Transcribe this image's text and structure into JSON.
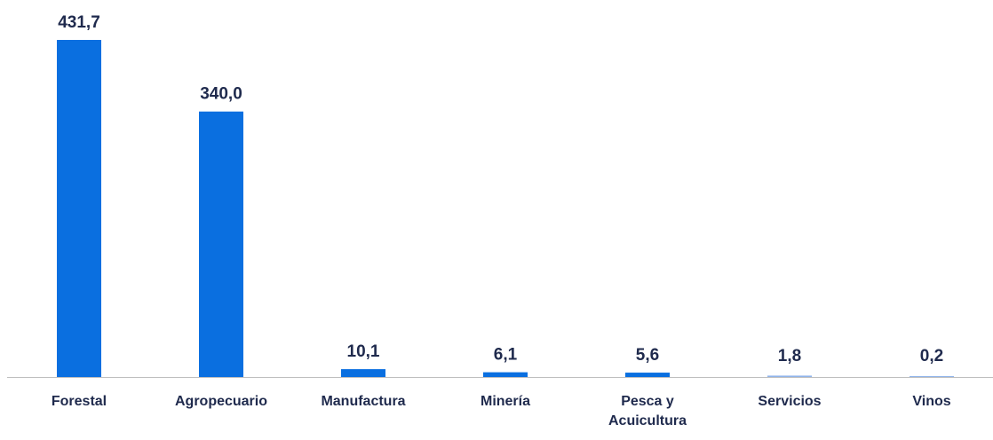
{
  "chart_data": {
    "type": "bar",
    "categories": [
      "Forestal",
      "Agropecuario",
      "Manufactura",
      "Minería",
      "Pesca y Acuicultura",
      "Servicios",
      "Vinos"
    ],
    "category_lines": [
      [
        "Forestal"
      ],
      [
        "Agropecuario"
      ],
      [
        "Manufactura"
      ],
      [
        "Minería"
      ],
      [
        "Pesca y",
        "Acuicultura"
      ],
      [
        "Servicios"
      ],
      [
        "Vinos"
      ]
    ],
    "values": [
      431.7,
      340.0,
      10.1,
      6.1,
      5.6,
      1.8,
      0.2
    ],
    "value_labels": [
      "431,7",
      "340,0",
      "10,1",
      "6,1",
      "5,6",
      "1,8",
      "0,2"
    ],
    "title": "",
    "xlabel": "",
    "ylabel": "",
    "ylim": [
      0,
      431.7
    ],
    "grid": false,
    "legend": "none"
  },
  "colors": {
    "bar": "#0a6fe0",
    "bar_small": "#8fb4ea",
    "text": "#1f2a4d",
    "axis": "#bfbfbf"
  }
}
